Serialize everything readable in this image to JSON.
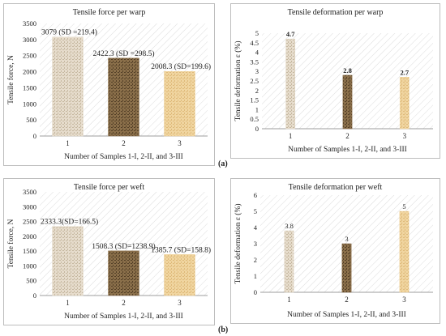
{
  "labels": {
    "a": "(a)",
    "b": "(b)"
  },
  "colors": {
    "plot_hatch": "#dcdcdc",
    "axis": "#9e9e9e",
    "bar1": "#e6dccc",
    "bar2": "#8a6f4a",
    "bar3": "#f0d5a0"
  },
  "chart_data": [
    {
      "type": "bar",
      "title": "Tensile force per warp",
      "xlabel": "Number of Samples 1-I, 2-II, and 3-III",
      "ylabel": "Tensile force, N",
      "categories": [
        "1",
        "2",
        "3"
      ],
      "values": [
        3079,
        2422.3,
        2008.3
      ],
      "data_labels": [
        "3079 (SD =219.4)",
        "2422.3 (SD =298.5)",
        "2008.3 (SD=199.6)"
      ],
      "ylim": [
        0,
        3500
      ],
      "yticks": [
        "0",
        "500",
        "1000",
        "1500",
        "2000",
        "2500",
        "3000",
        "3500"
      ],
      "grid": false,
      "legend": "none"
    },
    {
      "type": "bar",
      "title": "Tensile deformation per warp",
      "xlabel": "Number of Samples 1-I, 2-II, and 3-III",
      "ylabel": "Tensile deformation  ε (%)",
      "categories": [
        "1",
        "2",
        "3"
      ],
      "values": [
        4.7,
        2.8,
        2.7
      ],
      "data_labels": [
        "4.7",
        "2.8",
        "2.7"
      ],
      "ylim": [
        0,
        5
      ],
      "yticks": [
        "0",
        "0.5",
        "1",
        "1.5",
        "2",
        "2.5",
        "3",
        "3.5",
        "4",
        "4.5",
        "5"
      ],
      "grid": false,
      "legend": "none"
    },
    {
      "type": "bar",
      "title": "Tensile force per weft",
      "xlabel": "Number of Samples 1-I, 2-II, and 3-III",
      "ylabel": "Tensile force, N",
      "categories": [
        "1",
        "2",
        "3"
      ],
      "values": [
        2333.3,
        1508.3,
        1385.7
      ],
      "data_labels": [
        "2333.3(SD=166.5)",
        "1508.3 (SD=1238.9)",
        "1385.7 (SD=158.8)"
      ],
      "ylim": [
        0,
        3500
      ],
      "yticks": [
        "0",
        "500",
        "1000",
        "1500",
        "2000",
        "2500",
        "3000",
        "3500"
      ],
      "grid": false,
      "legend": "none"
    },
    {
      "type": "bar",
      "title": "Tensile deformation per weft",
      "xlabel": "Number of Samples 1-I, 2-II, and 3-III",
      "ylabel": "Tensile deformation  ε (%)",
      "categories": [
        "1",
        "2",
        "3"
      ],
      "values": [
        3.8,
        3,
        5
      ],
      "data_labels": [
        "3.8",
        "3",
        "5"
      ],
      "ylim": [
        0,
        6
      ],
      "yticks": [
        "0",
        "1",
        "2",
        "3",
        "4",
        "5",
        "6"
      ],
      "grid": false,
      "legend": "none"
    }
  ]
}
